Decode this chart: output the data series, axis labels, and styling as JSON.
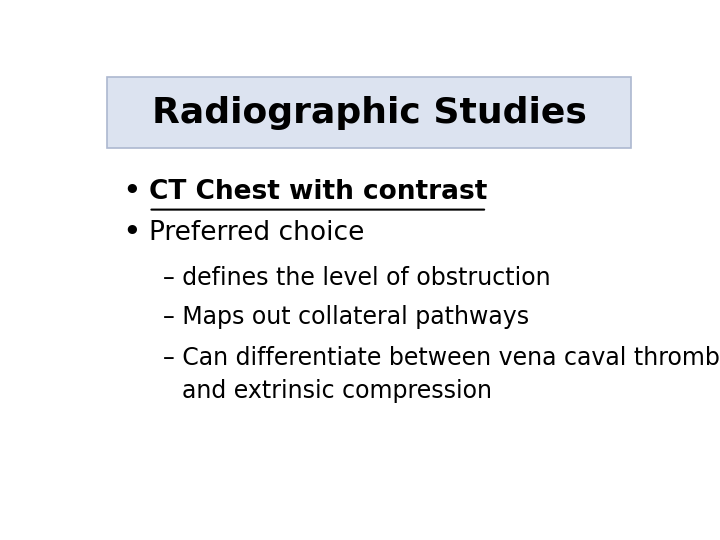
{
  "title": "Radiographic Studies",
  "title_fontsize": 26,
  "title_bg_color": "#dce3f0",
  "title_border_color": "#adb8d0",
  "background_color": "#ffffff",
  "bullet1": "CT Chest with contrast",
  "bullet2": "Preferred choice",
  "sub1": "– defines the level of obstruction",
  "sub2": "– Maps out collateral pathways",
  "sub3_line1": "– Can differentiate between vena caval thrombosis",
  "sub3_line2": "and extrinsic compression",
  "font_family": "DejaVu Sans",
  "bullet_fontsize": 19,
  "sub_fontsize": 17,
  "text_color": "#000000"
}
